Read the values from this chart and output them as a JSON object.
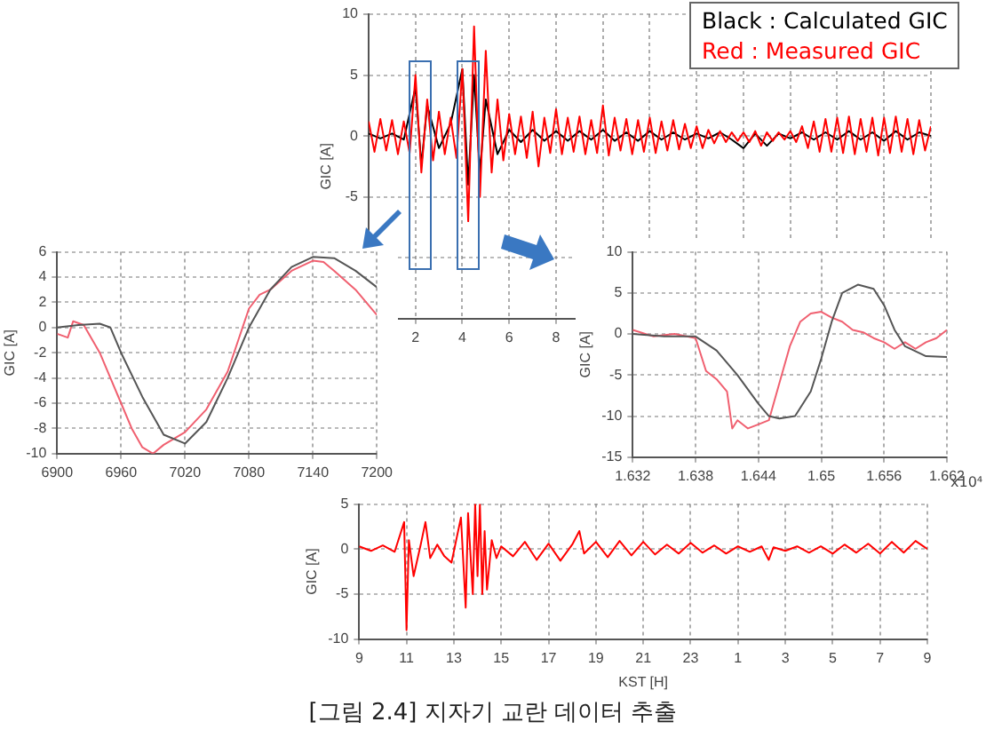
{
  "chart_data": [
    {
      "type": "line",
      "ylabel": "GIC [A]",
      "xlim": [
        0,
        24
      ],
      "ylim": [
        -15,
        10
      ],
      "xticks": [
        {
          "value": 0,
          "label": null
        },
        2,
        4,
        6,
        8,
        {
          "value": 10,
          "label": null
        },
        {
          "value": 12,
          "label": null
        },
        {
          "value": 14,
          "label": null
        },
        {
          "value": 16,
          "label": null
        },
        {
          "value": 18,
          "label": null
        },
        {
          "value": 20,
          "label": null
        },
        {
          "value": 22,
          "label": null
        },
        {
          "value": 24,
          "label": null
        }
      ],
      "yticks": [
        {
          "value": -15,
          "label": null
        },
        {
          "value": -10,
          "label": null
        },
        -5,
        0,
        5,
        10
      ],
      "grid": true,
      "legend": false,
      "line_style": "solid",
      "marker": "none",
      "annotations": [
        "Black : Calculated GIC",
        "Red : Measured GIC"
      ],
      "series": [
        {
          "color": "#ff0000",
          "x": [
            0,
            0.25,
            0.5,
            0.75,
            1,
            1.25,
            1.5,
            1.75,
            2,
            2.25,
            2.5,
            2.75,
            3,
            3.25,
            3.5,
            3.75,
            4,
            4.25,
            4.5,
            4.75,
            5,
            5.25,
            5.5,
            5.75,
            6,
            6.25,
            6.5,
            6.75,
            7,
            7.25,
            7.5,
            7.75,
            8,
            8.25,
            8.5,
            8.75,
            9,
            9.25,
            9.5,
            9.75,
            10,
            10.25,
            10.5,
            10.75,
            11,
            11.25,
            11.5,
            11.75,
            12,
            12.25,
            12.5,
            12.75,
            13,
            13.25,
            13.5,
            13.75,
            14,
            14.25,
            14.5,
            14.75,
            15,
            15.25,
            15.5,
            15.75,
            16,
            16.25,
            16.5,
            16.75,
            17,
            17.25,
            17.5,
            17.75,
            18,
            18.25,
            18.5,
            18.75,
            19,
            19.25,
            19.5,
            19.75,
            20,
            20.25,
            20.5,
            20.75,
            21,
            21.25,
            21.5,
            21.75,
            22,
            22.25,
            22.5,
            22.75,
            23,
            23.25,
            23.5,
            23.75,
            24
          ],
          "values": [
            1.2,
            -1.3,
            1.4,
            -1.2,
            1.3,
            -1.5,
            1.2,
            -1.4,
            5,
            -3,
            3,
            -2,
            2,
            -1.5,
            1.5,
            -1.8,
            5.5,
            -7,
            9,
            -5,
            7,
            -3,
            3,
            -2,
            1.8,
            -1.5,
            1.6,
            -1.8,
            2,
            -2.5,
            1.5,
            -1.4,
            2.2,
            -1.5,
            1.5,
            -1.3,
            1.6,
            -1.5,
            1.3,
            -1.4,
            2.5,
            -1.6,
            1.5,
            -1.2,
            1.4,
            -1.5,
            1.3,
            -1.3,
            1.5,
            -1.4,
            1.2,
            -1.2,
            1.3,
            -1.1,
            1,
            -1,
            0.8,
            -1,
            0.5,
            -0.6,
            0.4,
            -0.5,
            0.3,
            -0.4,
            0.3,
            -0.5,
            0.4,
            -0.8,
            0.3,
            -0.4,
            0.3,
            -0.3,
            0.4,
            -0.5,
            0.8,
            -1,
            1.2,
            -1.3,
            1.4,
            -1.3,
            1.5,
            -1.4,
            1.6,
            -1.5,
            1.4,
            -1.3,
            1.5,
            -1.6,
            1.5,
            -1.4,
            1.6,
            -1.3,
            1.4,
            -1.5,
            1.3,
            -1.2,
            0.8
          ]
        },
        {
          "color": "#000000",
          "x": [
            0,
            0.5,
            1,
            1.5,
            2,
            2.25,
            2.5,
            3,
            3.5,
            4,
            4.25,
            4.5,
            4.75,
            5,
            5.5,
            6,
            6.5,
            7,
            7.5,
            8,
            8.5,
            9,
            9.5,
            10,
            10.5,
            11,
            11.5,
            12,
            12.5,
            13,
            13.5,
            14,
            14.5,
            15,
            15.5,
            16,
            16.5,
            17,
            17.5,
            18,
            18.5,
            19,
            19.5,
            20,
            20.5,
            21,
            21.5,
            22,
            22.5,
            23,
            23.5,
            24
          ],
          "values": [
            0.2,
            -0.2,
            0.2,
            -0.3,
            4,
            -2.4,
            2.5,
            -1,
            1,
            5.5,
            -4,
            5,
            -3,
            3,
            -1.5,
            0.5,
            -0.5,
            0.5,
            -0.4,
            0.4,
            -0.4,
            0.4,
            -0.3,
            0.5,
            -0.4,
            0.3,
            -0.4,
            0.4,
            -0.3,
            0.3,
            -0.3,
            0.2,
            -0.2,
            0.3,
            -0.3,
            -1,
            0.2,
            -0.8,
            0.2,
            -0.2,
            0.3,
            -0.3,
            0.3,
            -0.3,
            0.4,
            -0.3,
            0.3,
            -0.4,
            0.4,
            -0.3,
            0.3,
            0
          ]
        }
      ]
    },
    {
      "type": "line",
      "ylabel": "GIC [A]",
      "xlim": [
        6900,
        7200
      ],
      "ylim": [
        -10,
        6
      ],
      "xticks": [
        6900,
        6960,
        7020,
        7080,
        7140,
        7200
      ],
      "yticks": [
        -10,
        -8,
        -6,
        -4,
        -2,
        0,
        2,
        4,
        6
      ],
      "grid": true,
      "legend": false,
      "line_style": "solid",
      "marker": "none",
      "series": [
        {
          "color": "#555555",
          "x": [
            6900,
            6920,
            6940,
            6950,
            6960,
            6980,
            7000,
            7020,
            7040,
            7060,
            7080,
            7100,
            7120,
            7140,
            7160,
            7180,
            7200
          ],
          "values": [
            0,
            0.2,
            0.3,
            0,
            -2,
            -5.5,
            -8.5,
            -9.2,
            -7.5,
            -4,
            0,
            3,
            4.8,
            5.6,
            5.5,
            4.5,
            3.2
          ]
        },
        {
          "color": "#f06070",
          "x": [
            6900,
            6910,
            6915,
            6925,
            6940,
            6950,
            6960,
            6970,
            6980,
            6990,
            7000,
            7020,
            7040,
            7060,
            7070,
            7080,
            7090,
            7100,
            7120,
            7140,
            7150,
            7160,
            7180,
            7200
          ],
          "values": [
            -0.5,
            -0.8,
            0.5,
            0.2,
            -2,
            -4,
            -6,
            -8,
            -9.5,
            -10,
            -9.3,
            -8.3,
            -6.5,
            -3.5,
            -1,
            1.5,
            2.6,
            3,
            4.5,
            5.3,
            5.2,
            4.5,
            3,
            1
          ]
        }
      ]
    },
    {
      "type": "line",
      "ylabel": "GIC [A]",
      "xlim": [
        1.632,
        1.662
      ],
      "ylim": [
        -15,
        10
      ],
      "xticks": [
        1.632,
        1.638,
        1.644,
        1.65,
        1.656,
        1.662
      ],
      "yticks": [
        -15,
        -10,
        -5,
        0,
        5,
        10
      ],
      "grid": true,
      "legend": false,
      "line_style": "solid",
      "marker": "none",
      "annotations": [
        "x10⁴"
      ],
      "series": [
        {
          "color": "#555555",
          "x": [
            1.632,
            1.635,
            1.638,
            1.64,
            1.642,
            1.644,
            1.645,
            1.646,
            1.6475,
            1.649,
            1.65,
            1.651,
            1.652,
            1.6535,
            1.655,
            1.656,
            1.657,
            1.658,
            1.66,
            1.662
          ],
          "values": [
            0,
            -0.3,
            -0.3,
            -2,
            -5,
            -8.5,
            -10,
            -10.3,
            -10,
            -7,
            -3,
            1.5,
            5,
            6,
            5.5,
            3.5,
            0.5,
            -1.5,
            -2.7,
            -2.8
          ]
        },
        {
          "color": "#f06070",
          "x": [
            1.632,
            1.634,
            1.636,
            1.638,
            1.639,
            1.64,
            1.641,
            1.6415,
            1.642,
            1.643,
            1.644,
            1.645,
            1.646,
            1.647,
            1.648,
            1.649,
            1.65,
            1.651,
            1.652,
            1.653,
            1.654,
            1.655,
            1.656,
            1.657,
            1.658,
            1.659,
            1.66,
            1.661,
            1.662
          ],
          "values": [
            0.5,
            -0.3,
            0,
            -0.5,
            -4.5,
            -5.5,
            -7,
            -11.5,
            -10.5,
            -11.5,
            -11,
            -10.5,
            -6,
            -1.5,
            1.5,
            2.5,
            2.7,
            2,
            1.5,
            0.5,
            0.2,
            -0.5,
            -1,
            -1.8,
            -1,
            -1.8,
            -1,
            -0.5,
            0.5
          ]
        }
      ]
    },
    {
      "type": "line",
      "xlabel": "KST [H]",
      "ylabel": "GIC [A]",
      "xlim": [
        "--01-01T09:00",
        "--01-02T09:00"
      ],
      "ylim": [
        -10,
        5
      ],
      "xticks": [
        {
          "value": "--01-01T09:00",
          "label": "9"
        },
        {
          "value": "--01-01T11:00",
          "label": "11"
        },
        {
          "value": "--01-01T13:00",
          "label": "13"
        },
        {
          "value": "--01-01T15:00",
          "label": "15"
        },
        {
          "value": "--01-01T17:00",
          "label": "17"
        },
        {
          "value": "--01-01T19:00",
          "label": "19"
        },
        {
          "value": "--01-01T21:00",
          "label": "21"
        },
        {
          "value": "--01-01T23:00",
          "label": "23"
        },
        {
          "value": "--01-02T01:00",
          "label": "1"
        },
        {
          "value": "--01-02T03:00",
          "label": "3"
        },
        {
          "value": "--01-02T05:00",
          "label": "5"
        },
        {
          "value": "--01-02T07:00",
          "label": "7"
        },
        {
          "value": "--01-02T09:00",
          "label": "9"
        }
      ],
      "yticks": [
        -10,
        -5,
        0,
        5
      ],
      "grid": true,
      "legend": false,
      "line_style": "solid",
      "marker": "none",
      "annotations": [
        "[그림 2.4] 지자기 교란 데이터 추출"
      ],
      "series": [
        {
          "color": "#ff0000",
          "x": [
            "--01-01T09:00",
            "--01-01T09:30",
            "--01-01T10:00",
            "--01-01T10:30",
            "--01-01T10:54",
            "--01-01T11:00",
            "--01-01T11:06",
            "--01-01T11:18",
            "--01-01T11:36",
            "--01-01T11:48",
            "--01-01T12:00",
            "--01-01T12:18",
            "--01-01T12:36",
            "--01-01T12:54",
            "--01-01T13:06",
            "--01-01T13:18",
            "--01-01T13:30",
            "--01-01T13:36",
            "--01-01T13:48",
            "--01-01T13:54",
            "--01-01T14:00",
            "--01-01T14:06",
            "--01-01T14:12",
            "--01-01T14:18",
            "--01-01T14:24",
            "--01-01T14:36",
            "--01-01T14:48",
            "--01-01T15:00",
            "--01-01T15:30",
            "--01-01T16:00",
            "--01-01T16:30",
            "--01-01T17:00",
            "--01-01T17:30",
            "--01-01T18:00",
            "--01-01T18:18",
            "--01-01T18:30",
            "--01-01T19:00",
            "--01-01T19:30",
            "--01-01T20:00",
            "--01-01T20:30",
            "--01-01T21:00",
            "--01-01T21:30",
            "--01-01T22:00",
            "--01-01T22:30",
            "--01-01T23:00",
            "--01-01T23:30",
            "--01-02T00:00",
            "--01-02T00:30",
            "--01-02T01:00",
            "--01-02T01:30",
            "--01-02T02:00",
            "--01-02T02:18",
            "--01-02T02:30",
            "--01-02T03:00",
            "--01-02T03:30",
            "--01-02T04:00",
            "--01-02T04:30",
            "--01-02T05:00",
            "--01-02T05:30",
            "--01-02T06:00",
            "--01-02T06:30",
            "--01-02T07:00",
            "--01-02T07:30",
            "--01-02T08:00",
            "--01-02T08:30",
            "--01-02T09:00"
          ],
          "values": [
            0.3,
            -0.2,
            0.4,
            -0.3,
            3,
            -9,
            1,
            -3,
            0.5,
            3,
            -1,
            0.5,
            -0.8,
            -1.5,
            1,
            3.5,
            -6.5,
            4,
            -5,
            5,
            -3,
            5,
            -5,
            2,
            -4.5,
            1,
            -1,
            0.3,
            -0.8,
            0.8,
            -1.2,
            0.6,
            -1.3,
            0.5,
            2,
            -0.5,
            0.8,
            -0.9,
            0.9,
            -0.7,
            0.8,
            -0.6,
            0.5,
            -0.5,
            0.7,
            -0.4,
            0.4,
            -0.5,
            0.3,
            -0.3,
            0.3,
            -1.2,
            0.2,
            -0.2,
            0.3,
            -0.4,
            0.3,
            -0.5,
            0.5,
            -0.4,
            0.6,
            -0.5,
            0.8,
            -0.4,
            0.9,
            0
          ]
        }
      ]
    }
  ]
}
